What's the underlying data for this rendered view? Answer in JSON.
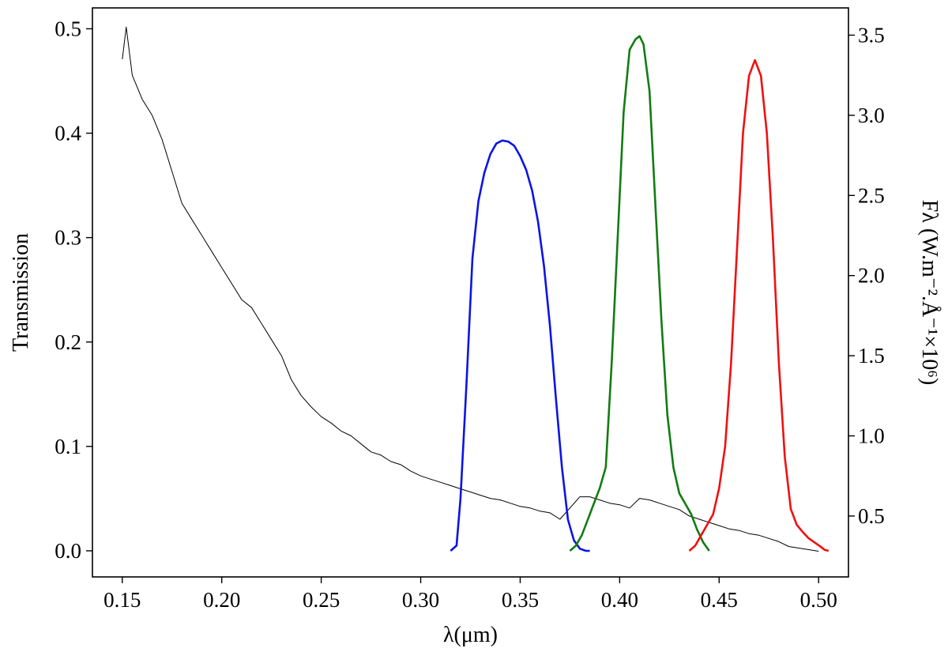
{
  "chart_data": {
    "type": "line",
    "xlabel": "λ(μm)",
    "ylabel": "Transmission",
    "ylabel_right": "Fλ (W.m⁻².Å⁻¹×10⁶)",
    "xlim": [
      0.135,
      0.515
    ],
    "ylim": [
      -0.025,
      0.52
    ],
    "ylim_right": [
      0.12,
      3.67
    ],
    "xticks": [
      0.15,
      0.2,
      0.25,
      0.3,
      0.35,
      0.4,
      0.45,
      0.5
    ],
    "xtick_labels": [
      "0.15",
      "0.20",
      "0.25",
      "0.30",
      "0.35",
      "0.40",
      "0.45",
      "0.50"
    ],
    "yticks": [
      0.0,
      0.1,
      0.2,
      0.3,
      0.4,
      0.5
    ],
    "ytick_labels": [
      "0.0",
      "0.1",
      "0.2",
      "0.3",
      "0.4",
      "0.5"
    ],
    "yticks_right": [
      0.5,
      1.0,
      1.5,
      2.0,
      2.5,
      3.0,
      3.5
    ],
    "ytick_labels_right": [
      "0.5",
      "1.0",
      "1.5",
      "2.0",
      "2.5",
      "3.0",
      "3.5"
    ],
    "grid": false,
    "legend": "none",
    "series": [
      {
        "axis": "right",
        "color": "#000000",
        "x": [
          0.15,
          0.152,
          0.155,
          0.16,
          0.165,
          0.17,
          0.175,
          0.18,
          0.185,
          0.19,
          0.195,
          0.2,
          0.205,
          0.21,
          0.215,
          0.22,
          0.225,
          0.23,
          0.235,
          0.24,
          0.245,
          0.25,
          0.255,
          0.26,
          0.265,
          0.27,
          0.275,
          0.28,
          0.285,
          0.29,
          0.295,
          0.3,
          0.305,
          0.31,
          0.315,
          0.32,
          0.325,
          0.33,
          0.335,
          0.34,
          0.345,
          0.35,
          0.355,
          0.36,
          0.365,
          0.37,
          0.375,
          0.38,
          0.385,
          0.39,
          0.395,
          0.4,
          0.405,
          0.41,
          0.415,
          0.42,
          0.425,
          0.43,
          0.435,
          0.44,
          0.445,
          0.45,
          0.455,
          0.46,
          0.465,
          0.47,
          0.475,
          0.48,
          0.485,
          0.49,
          0.495,
          0.5
        ],
        "y": [
          3.35,
          3.55,
          3.25,
          3.1,
          3.0,
          2.85,
          2.65,
          2.45,
          2.35,
          2.25,
          2.15,
          2.05,
          1.95,
          1.85,
          1.8,
          1.7,
          1.6,
          1.5,
          1.35,
          1.25,
          1.18,
          1.12,
          1.08,
          1.03,
          1.0,
          0.95,
          0.9,
          0.88,
          0.84,
          0.82,
          0.78,
          0.75,
          0.73,
          0.71,
          0.69,
          0.67,
          0.65,
          0.63,
          0.61,
          0.6,
          0.58,
          0.56,
          0.55,
          0.53,
          0.52,
          0.48,
          0.55,
          0.62,
          0.62,
          0.6,
          0.58,
          0.57,
          0.55,
          0.61,
          0.6,
          0.58,
          0.56,
          0.54,
          0.5,
          0.48,
          0.46,
          0.44,
          0.42,
          0.41,
          0.39,
          0.38,
          0.36,
          0.34,
          0.31,
          0.3,
          0.29,
          0.28
        ]
      },
      {
        "axis": "left",
        "color": "#0a14e6",
        "x": [
          0.315,
          0.318,
          0.32,
          0.323,
          0.326,
          0.329,
          0.332,
          0.335,
          0.338,
          0.341,
          0.344,
          0.347,
          0.35,
          0.353,
          0.356,
          0.359,
          0.362,
          0.365,
          0.368,
          0.371,
          0.374,
          0.377,
          0.38,
          0.383,
          0.385
        ],
        "y": [
          0.0,
          0.005,
          0.05,
          0.16,
          0.28,
          0.335,
          0.362,
          0.38,
          0.39,
          0.393,
          0.392,
          0.388,
          0.378,
          0.365,
          0.345,
          0.315,
          0.272,
          0.215,
          0.145,
          0.08,
          0.03,
          0.01,
          0.002,
          0.0,
          0.0
        ]
      },
      {
        "axis": "left",
        "color": "#137b13",
        "x": [
          0.375,
          0.378,
          0.381,
          0.384,
          0.387,
          0.39,
          0.393,
          0.396,
          0.399,
          0.402,
          0.405,
          0.408,
          0.41,
          0.412,
          0.415,
          0.418,
          0.421,
          0.424,
          0.427,
          0.43,
          0.433,
          0.436,
          0.439,
          0.442,
          0.445
        ],
        "y": [
          0.0,
          0.005,
          0.015,
          0.03,
          0.045,
          0.06,
          0.08,
          0.18,
          0.3,
          0.42,
          0.48,
          0.49,
          0.493,
          0.485,
          0.44,
          0.33,
          0.22,
          0.13,
          0.08,
          0.055,
          0.045,
          0.035,
          0.02,
          0.008,
          0.0
        ]
      },
      {
        "axis": "left",
        "color": "#f01010",
        "x": [
          0.435,
          0.438,
          0.441,
          0.444,
          0.447,
          0.45,
          0.453,
          0.456,
          0.459,
          0.462,
          0.465,
          0.468,
          0.471,
          0.474,
          0.477,
          0.48,
          0.483,
          0.486,
          0.489,
          0.492,
          0.495,
          0.498,
          0.501,
          0.503,
          0.505
        ],
        "y": [
          0.0,
          0.005,
          0.015,
          0.025,
          0.035,
          0.06,
          0.1,
          0.18,
          0.29,
          0.4,
          0.455,
          0.47,
          0.455,
          0.4,
          0.3,
          0.18,
          0.09,
          0.04,
          0.025,
          0.018,
          0.012,
          0.008,
          0.004,
          0.001,
          0.0
        ]
      }
    ]
  }
}
